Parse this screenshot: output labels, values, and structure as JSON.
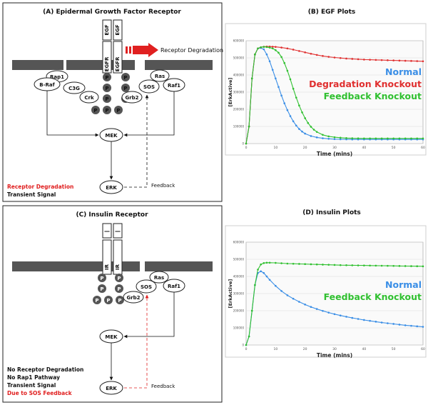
{
  "panelA": {
    "title": "(A) Epidermal Growth Factor Receptor",
    "ligand": "EGF",
    "receptor": "EGFR",
    "degradation_label": "Receptor Degradation",
    "proteins": [
      "Rap1",
      "B-Raf",
      "C3G",
      "Crk",
      "Grb2",
      "SOS",
      "Ras",
      "Raf1",
      "MEK",
      "ERK"
    ],
    "phospho": "P",
    "feedback": "Feedback",
    "summary": [
      "Receptor Degradation",
      "Transient Signal"
    ],
    "colors": {
      "degradation": "#e02020",
      "summary_first": "#e02020"
    }
  },
  "panelB": {
    "title": "(B) EGF Plots"
  },
  "panelC": {
    "title": "(C) Insulin Receptor",
    "ligand": "—",
    "receptor": "IR",
    "proteins": [
      "Grb2",
      "SOS",
      "Ras",
      "Raf1",
      "MEK",
      "ERK"
    ],
    "phospho": "P",
    "feedback": "Feedback",
    "summary": [
      "No Receptor Degradation",
      "No Rap1 Pathway",
      "Transient Signal",
      "Due to SOS Feedback"
    ],
    "colors": {
      "summary_last": "#e02020",
      "feedback_arrow": "#e02020"
    }
  },
  "panelD": {
    "title": "(D) Insulin Plots"
  },
  "chart_data": [
    {
      "type": "line",
      "title": "",
      "xlabel": "Time (mins)",
      "ylabel": "[ErkActive]",
      "xlim": [
        0,
        60
      ],
      "ylim": [
        0,
        600000
      ],
      "xticks": [
        0,
        10,
        20,
        30,
        40,
        50,
        60
      ],
      "yticks": [
        0,
        100000,
        200000,
        300000,
        400000,
        500000,
        600000
      ],
      "grid": true,
      "legend_position": "right",
      "series": [
        {
          "name": "Normal",
          "color": "#3a8ee6",
          "x": [
            0,
            1,
            2,
            3,
            4,
            5,
            6,
            7,
            8,
            9,
            10,
            11,
            12,
            13,
            14,
            15,
            16,
            17,
            18,
            19,
            20,
            22,
            24,
            26,
            28,
            30,
            32,
            34,
            36,
            38,
            40,
            42,
            44,
            46,
            48,
            50,
            52,
            54,
            56,
            58,
            60
          ],
          "y": [
            0,
            100000,
            380000,
            520000,
            555000,
            558000,
            550000,
            520000,
            480000,
            430000,
            380000,
            330000,
            280000,
            235000,
            195000,
            160000,
            130000,
            105000,
            85000,
            70000,
            58000,
            44000,
            36000,
            31000,
            28000,
            26000,
            25000,
            24500,
            24000,
            24000,
            24000,
            24000,
            24000,
            24000,
            24000,
            24000,
            24000,
            24000,
            24000,
            24000,
            24000
          ]
        },
        {
          "name": "Degradation Knockout",
          "color": "#e03030",
          "x": [
            0,
            1,
            2,
            3,
            4,
            5,
            6,
            7,
            8,
            9,
            10,
            12,
            14,
            16,
            18,
            20,
            22,
            24,
            26,
            28,
            30,
            32,
            34,
            36,
            38,
            40,
            42,
            44,
            46,
            48,
            50,
            52,
            54,
            56,
            58,
            60
          ],
          "y": [
            0,
            100000,
            380000,
            520000,
            555000,
            562000,
            565000,
            566000,
            566000,
            565000,
            564000,
            560000,
            555000,
            548000,
            540000,
            532000,
            524000,
            517000,
            511000,
            506000,
            502000,
            499000,
            496000,
            494000,
            492000,
            490000,
            489000,
            488000,
            487000,
            486000,
            485000,
            484000,
            483000,
            482000,
            481000,
            480000
          ]
        },
        {
          "name": "Feedback Knockout",
          "color": "#30c030",
          "x": [
            0,
            1,
            2,
            3,
            4,
            5,
            6,
            7,
            8,
            9,
            10,
            11,
            12,
            13,
            14,
            15,
            16,
            17,
            18,
            19,
            20,
            21,
            22,
            23,
            24,
            26,
            28,
            30,
            32,
            34,
            36,
            38,
            40,
            42,
            44,
            46,
            48,
            50,
            52,
            54,
            56,
            58,
            60
          ],
          "y": [
            0,
            100000,
            380000,
            520000,
            555000,
            562000,
            564000,
            563000,
            560000,
            555000,
            545000,
            530000,
            505000,
            470000,
            425000,
            375000,
            320000,
            268000,
            222000,
            182000,
            148000,
            120000,
            98000,
            81000,
            68000,
            51000,
            42000,
            37000,
            34000,
            32000,
            31000,
            30500,
            30000,
            30000,
            30000,
            30000,
            30000,
            30000,
            30000,
            30000,
            30000,
            30000,
            30000
          ]
        }
      ]
    },
    {
      "type": "line",
      "title": "",
      "xlabel": "Time (mins)",
      "ylabel": "[ErkActive]",
      "xlim": [
        0,
        60
      ],
      "ylim": [
        0,
        600000
      ],
      "xticks": [
        0,
        10,
        20,
        30,
        40,
        50,
        60
      ],
      "yticks": [
        0,
        100000,
        200000,
        300000,
        400000,
        500000,
        600000
      ],
      "grid": true,
      "legend_position": "right",
      "series": [
        {
          "name": "Normal",
          "color": "#3a8ee6",
          "x": [
            0,
            1,
            2,
            3,
            4,
            5,
            6,
            7,
            8,
            10,
            12,
            14,
            16,
            18,
            20,
            22,
            24,
            26,
            28,
            30,
            32,
            34,
            36,
            38,
            40,
            42,
            44,
            46,
            48,
            50,
            52,
            54,
            56,
            58,
            60
          ],
          "y": [
            0,
            50000,
            200000,
            350000,
            420000,
            430000,
            420000,
            400000,
            380000,
            345000,
            315000,
            290000,
            270000,
            252000,
            236000,
            222000,
            210000,
            199000,
            189000,
            180000,
            172000,
            165000,
            158000,
            152000,
            146000,
            141000,
            136000,
            131000,
            127000,
            123000,
            119000,
            115000,
            112000,
            109000,
            106000
          ]
        },
        {
          "name": "Feedback Knockout",
          "color": "#30c030",
          "x": [
            0,
            1,
            2,
            3,
            4,
            5,
            6,
            7,
            8,
            10,
            12,
            14,
            16,
            18,
            20,
            22,
            24,
            26,
            28,
            30,
            32,
            34,
            36,
            38,
            40,
            42,
            44,
            46,
            48,
            50,
            52,
            54,
            56,
            58,
            60
          ],
          "y": [
            0,
            50000,
            200000,
            350000,
            440000,
            470000,
            478000,
            480000,
            480000,
            479000,
            477000,
            475000,
            474000,
            473000,
            472000,
            471000,
            470000,
            469000,
            468000,
            467000,
            466000,
            465500,
            465000,
            464500,
            464000,
            463500,
            463000,
            462500,
            462000,
            461500,
            461000,
            460500,
            460000,
            459500,
            459000
          ]
        }
      ]
    }
  ]
}
